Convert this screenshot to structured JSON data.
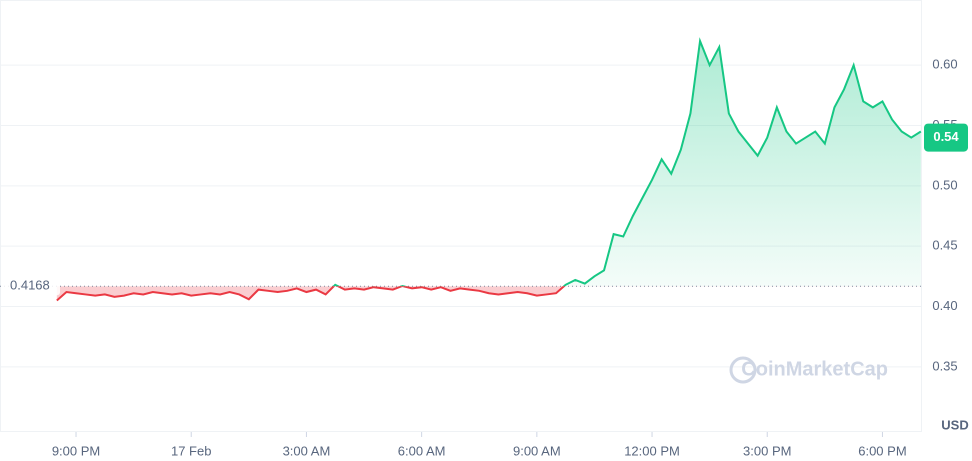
{
  "chart_data": {
    "type": "line",
    "x": [
      -3.5,
      -3.25,
      -3,
      -2.75,
      -2.5,
      -2.25,
      -2,
      -1.75,
      -1.5,
      -1.25,
      -1,
      -0.75,
      -0.5,
      -0.25,
      0,
      0.25,
      0.5,
      0.75,
      1,
      1.25,
      1.5,
      1.75,
      2,
      2.25,
      2.5,
      2.75,
      3,
      3.25,
      3.5,
      3.75,
      4,
      4.25,
      4.5,
      4.75,
      5,
      5.25,
      5.5,
      5.75,
      6,
      6.25,
      6.5,
      6.75,
      7,
      7.25,
      7.5,
      7.75,
      8,
      8.25,
      8.5,
      8.75,
      9,
      9.25,
      9.5,
      9.75,
      10,
      10.25,
      10.5,
      10.75,
      11,
      11.25,
      11.5,
      11.75,
      12,
      12.25,
      12.5,
      12.75,
      13,
      13.25,
      13.5,
      13.75,
      14,
      14.25,
      14.5,
      14.75,
      15,
      15.25,
      15.5,
      15.75,
      16,
      16.25,
      16.5,
      16.75,
      17,
      17.25,
      17.5,
      17.75,
      18,
      18.25,
      18.5,
      18.75,
      19
    ],
    "values": [
      0.405,
      0.412,
      0.411,
      0.41,
      0.409,
      0.41,
      0.408,
      0.409,
      0.411,
      0.41,
      0.412,
      0.411,
      0.41,
      0.411,
      0.409,
      0.41,
      0.411,
      0.41,
      0.412,
      0.41,
      0.406,
      0.414,
      0.413,
      0.412,
      0.413,
      0.415,
      0.412,
      0.414,
      0.41,
      0.418,
      0.414,
      0.415,
      0.414,
      0.416,
      0.415,
      0.414,
      0.417,
      0.415,
      0.416,
      0.414,
      0.416,
      0.413,
      0.415,
      0.414,
      0.413,
      0.411,
      0.41,
      0.411,
      0.412,
      0.411,
      0.409,
      0.41,
      0.411,
      0.418,
      0.422,
      0.419,
      0.425,
      0.43,
      0.46,
      0.458,
      0.475,
      0.49,
      0.505,
      0.522,
      0.51,
      0.53,
      0.56,
      0.62,
      0.6,
      0.615,
      0.56,
      0.545,
      0.535,
      0.525,
      0.54,
      0.565,
      0.545,
      0.535,
      0.54,
      0.545,
      0.535,
      0.565,
      0.58,
      0.6,
      0.57,
      0.565,
      0.57,
      0.555,
      0.545,
      0.54,
      0.545
    ],
    "baseline": 0.4168,
    "price_label": 0.54,
    "up_color": "#16c784",
    "down_color": "#ea3943",
    "xlim": [
      -4.98,
      19.03
    ],
    "xticks": [
      {
        "value": -3,
        "label": "9:00 PM"
      },
      {
        "value": 0,
        "label": "17 Feb"
      },
      {
        "value": 3,
        "label": "3:00 AM"
      },
      {
        "value": 6,
        "label": "6:00 AM"
      },
      {
        "value": 9,
        "label": "9:00 AM"
      },
      {
        "value": 12,
        "label": "12:00 PM"
      },
      {
        "value": 15,
        "label": "3:00 PM"
      },
      {
        "value": 18,
        "label": "6:00 PM"
      }
    ],
    "ylim": [
      0.296,
      0.654
    ],
    "yticks": [
      0.35,
      {
        "value": 0.4,
        "label": "0.40"
      },
      0.45,
      {
        "value": 0.5,
        "label": "0.50"
      },
      0.55,
      {
        "value": 0.6,
        "label": "0.60"
      }
    ],
    "y_unit": "USD",
    "watermark": "CoinMarketCap",
    "grid": true
  }
}
